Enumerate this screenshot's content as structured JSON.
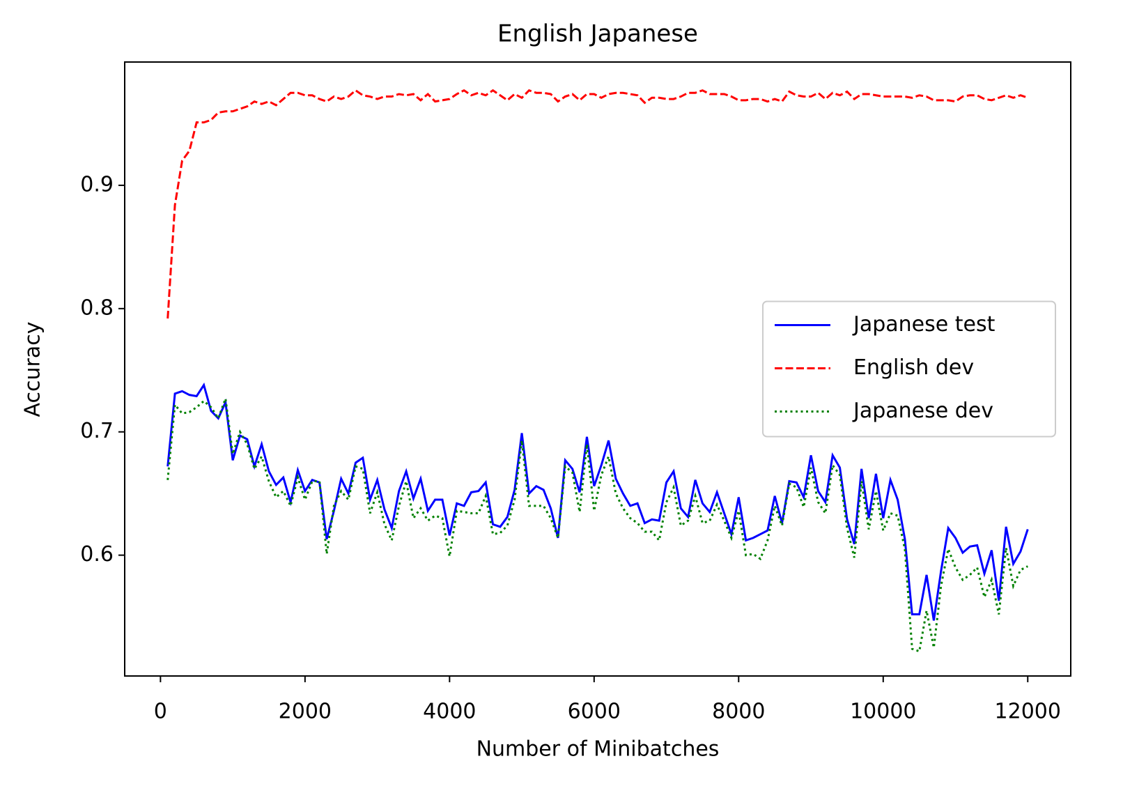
{
  "chart_data": {
    "type": "line",
    "title": "English Japanese",
    "xlabel": "Number of Minibatches",
    "ylabel": "Accuracy",
    "xlim": [
      -495,
      12595
    ],
    "ylim": [
      0.502,
      1.0
    ],
    "xticks": [
      0,
      2000,
      4000,
      6000,
      8000,
      10000,
      12000
    ],
    "yticks": [
      0.6,
      0.7,
      0.8,
      0.9
    ],
    "grid": false,
    "legend": "center right",
    "x": [
      100,
      200,
      300,
      400,
      500,
      600,
      700,
      800,
      900,
      1000,
      1100,
      1200,
      1300,
      1400,
      1500,
      1600,
      1700,
      1800,
      1900,
      2000,
      2100,
      2200,
      2300,
      2400,
      2500,
      2600,
      2700,
      2800,
      2900,
      3000,
      3100,
      3200,
      3300,
      3400,
      3500,
      3600,
      3700,
      3800,
      3900,
      4000,
      4100,
      4200,
      4300,
      4400,
      4500,
      4600,
      4700,
      4800,
      4900,
      5000,
      5100,
      5200,
      5300,
      5400,
      5500,
      5600,
      5700,
      5800,
      5900,
      6000,
      6100,
      6200,
      6300,
      6400,
      6500,
      6600,
      6700,
      6800,
      6900,
      7000,
      7100,
      7200,
      7300,
      7400,
      7500,
      7600,
      7700,
      7800,
      7900,
      8000,
      8100,
      8200,
      8300,
      8400,
      8500,
      8600,
      8700,
      8800,
      8900,
      9000,
      9100,
      9200,
      9300,
      9400,
      9500,
      9600,
      9700,
      9800,
      9900,
      10000,
      10100,
      10200,
      10300,
      10400,
      10500,
      10600,
      10700,
      10800,
      10900,
      11000,
      11100,
      11200,
      11300,
      11400,
      11500,
      11600,
      11700,
      11800,
      11900,
      12000
    ],
    "series": [
      {
        "name": "Japanese test",
        "color": "#0000ff",
        "linestyle": "solid",
        "values": [
          0.672,
          0.731,
          0.733,
          0.73,
          0.729,
          0.738,
          0.717,
          0.711,
          0.724,
          0.677,
          0.697,
          0.694,
          0.672,
          0.69,
          0.668,
          0.657,
          0.663,
          0.643,
          0.669,
          0.652,
          0.661,
          0.659,
          0.613,
          0.636,
          0.662,
          0.65,
          0.675,
          0.679,
          0.645,
          0.661,
          0.637,
          0.622,
          0.652,
          0.668,
          0.646,
          0.662,
          0.636,
          0.645,
          0.645,
          0.616,
          0.642,
          0.64,
          0.651,
          0.652,
          0.659,
          0.625,
          0.623,
          0.631,
          0.653,
          0.699,
          0.65,
          0.656,
          0.653,
          0.638,
          0.614,
          0.677,
          0.67,
          0.651,
          0.696,
          0.656,
          0.673,
          0.693,
          0.662,
          0.65,
          0.64,
          0.642,
          0.626,
          0.629,
          0.628,
          0.659,
          0.668,
          0.638,
          0.631,
          0.661,
          0.642,
          0.635,
          0.651,
          0.634,
          0.617,
          0.647,
          0.612,
          0.614,
          0.617,
          0.62,
          0.648,
          0.626,
          0.66,
          0.659,
          0.647,
          0.681,
          0.652,
          0.643,
          0.681,
          0.671,
          0.629,
          0.609,
          0.67,
          0.63,
          0.666,
          0.63,
          0.661,
          0.645,
          0.613,
          0.552,
          0.552,
          0.584,
          0.547,
          0.587,
          0.622,
          0.614,
          0.602,
          0.607,
          0.608,
          0.585,
          0.604,
          0.563,
          0.623,
          0.593,
          0.603,
          0.621
        ]
      },
      {
        "name": "English dev",
        "color": "#ff0000",
        "linestyle": "dashed",
        "values": [
          0.792,
          0.884,
          0.92,
          0.928,
          0.951,
          0.951,
          0.953,
          0.959,
          0.96,
          0.96,
          0.962,
          0.964,
          0.968,
          0.966,
          0.968,
          0.965,
          0.97,
          0.975,
          0.975,
          0.973,
          0.973,
          0.97,
          0.968,
          0.972,
          0.97,
          0.972,
          0.977,
          0.973,
          0.972,
          0.97,
          0.972,
          0.972,
          0.974,
          0.973,
          0.974,
          0.969,
          0.974,
          0.968,
          0.969,
          0.97,
          0.974,
          0.977,
          0.973,
          0.975,
          0.973,
          0.977,
          0.973,
          0.969,
          0.974,
          0.971,
          0.977,
          0.975,
          0.975,
          0.974,
          0.968,
          0.972,
          0.974,
          0.969,
          0.974,
          0.974,
          0.971,
          0.974,
          0.975,
          0.975,
          0.974,
          0.973,
          0.967,
          0.971,
          0.971,
          0.97,
          0.97,
          0.972,
          0.975,
          0.975,
          0.977,
          0.974,
          0.974,
          0.974,
          0.972,
          0.969,
          0.969,
          0.97,
          0.97,
          0.968,
          0.97,
          0.968,
          0.976,
          0.973,
          0.972,
          0.972,
          0.975,
          0.97,
          0.975,
          0.973,
          0.976,
          0.97,
          0.974,
          0.974,
          0.973,
          0.972,
          0.972,
          0.972,
          0.972,
          0.971,
          0.973,
          0.972,
          0.969,
          0.969,
          0.969,
          0.968,
          0.972,
          0.973,
          0.973,
          0.97,
          0.969,
          0.971,
          0.973,
          0.971,
          0.973,
          0.971
        ]
      },
      {
        "name": "Japanese dev",
        "color": "#008000",
        "linestyle": "dotted",
        "values": [
          0.661,
          0.722,
          0.715,
          0.716,
          0.72,
          0.725,
          0.72,
          0.711,
          0.727,
          0.682,
          0.7,
          0.69,
          0.67,
          0.68,
          0.66,
          0.647,
          0.652,
          0.64,
          0.663,
          0.645,
          0.66,
          0.66,
          0.601,
          0.64,
          0.652,
          0.645,
          0.672,
          0.67,
          0.634,
          0.651,
          0.625,
          0.612,
          0.64,
          0.66,
          0.63,
          0.638,
          0.628,
          0.632,
          0.63,
          0.599,
          0.636,
          0.635,
          0.634,
          0.634,
          0.648,
          0.617,
          0.618,
          0.624,
          0.645,
          0.693,
          0.64,
          0.64,
          0.64,
          0.63,
          0.614,
          0.672,
          0.667,
          0.635,
          0.69,
          0.636,
          0.665,
          0.68,
          0.65,
          0.638,
          0.63,
          0.626,
          0.619,
          0.619,
          0.612,
          0.643,
          0.655,
          0.624,
          0.628,
          0.648,
          0.626,
          0.628,
          0.641,
          0.628,
          0.614,
          0.636,
          0.6,
          0.601,
          0.597,
          0.612,
          0.64,
          0.624,
          0.658,
          0.655,
          0.639,
          0.671,
          0.643,
          0.634,
          0.673,
          0.665,
          0.622,
          0.598,
          0.66,
          0.621,
          0.652,
          0.62,
          0.634,
          0.632,
          0.605,
          0.524,
          0.522,
          0.555,
          0.525,
          0.575,
          0.605,
          0.59,
          0.58,
          0.584,
          0.59,
          0.566,
          0.58,
          0.552,
          0.606,
          0.575,
          0.588,
          0.591
        ]
      }
    ]
  }
}
